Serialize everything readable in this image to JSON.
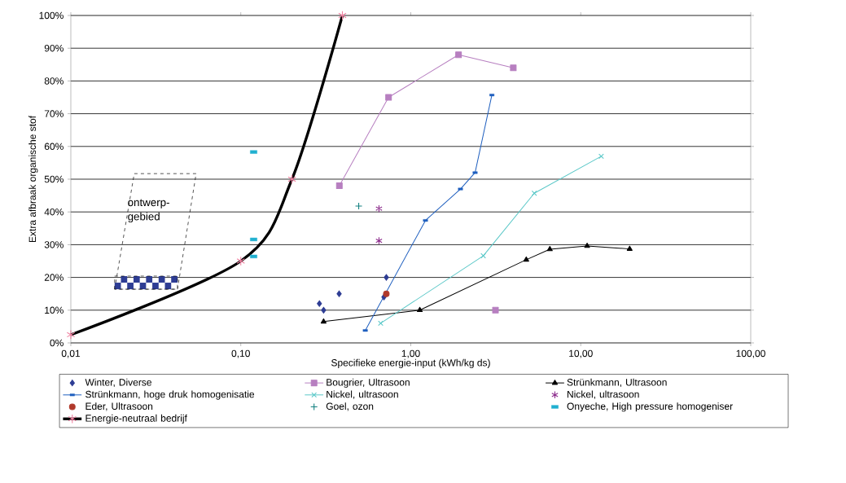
{
  "chart_data": {
    "type": "line",
    "xlabel": "Specifieke energie-input (kWh/kg ds)",
    "ylabel": "Extra afbraak organische stof",
    "log": "x",
    "xlim": [
      0.01,
      100
    ],
    "ylim": [
      0,
      100
    ],
    "xticks": [
      {
        "value": 0.01,
        "label": "0,01"
      },
      {
        "value": 0.1,
        "label": "0,10"
      },
      {
        "value": 1,
        "label": "1,00"
      },
      {
        "value": 10,
        "label": "10,00"
      },
      {
        "value": 100,
        "label": "100,00"
      }
    ],
    "yticks": [
      {
        "value": 0,
        "label": "0%"
      },
      {
        "value": 10,
        "label": "10%"
      },
      {
        "value": 20,
        "label": "20%"
      },
      {
        "value": 30,
        "label": "30%"
      },
      {
        "value": 40,
        "label": "40%"
      },
      {
        "value": 50,
        "label": "50%"
      },
      {
        "value": 60,
        "label": "60%"
      },
      {
        "value": 70,
        "label": "70%"
      },
      {
        "value": 80,
        "label": "80%"
      },
      {
        "value": 90,
        "label": "90%"
      },
      {
        "value": 100,
        "label": "100%"
      }
    ],
    "grid": "y",
    "legend": "bottom",
    "annotations": [
      "ontwerp-gebied"
    ],
    "series": [
      {
        "name": "Winter, Diverse",
        "type": "scatter",
        "marker": "diamond",
        "color": "#2e3d94",
        "x": [
          0.29,
          0.307,
          0.379,
          0.695,
          0.718
        ],
        "values": [
          12,
          10,
          15,
          14,
          20
        ]
      },
      {
        "name": "Bougrier, Ultrasoon",
        "marker": "square",
        "color": "#b77fc0",
        "x": [
          0.38,
          0.74,
          1.91,
          4.01,
          null,
          3.15
        ],
        "values": [
          48,
          75,
          88,
          84,
          null,
          10
        ]
      },
      {
        "name": "Strünkmann, Ultrasoon",
        "marker": "triangle",
        "color": "#000000",
        "x": [
          0.307,
          1.13,
          4.78,
          6.58,
          10.9,
          19.4
        ],
        "values": [
          6.5,
          10,
          25.4,
          28.6,
          29.6,
          28.7
        ]
      },
      {
        "name": "Strünkmann, hoge druk homogenisatie",
        "marker": "square",
        "color": "#1f5fbf",
        "x": [
          0.54,
          1.22,
          1.96,
          2.39,
          3.0
        ],
        "values": [
          3.8,
          37.4,
          47,
          52,
          75.7
        ]
      },
      {
        "name": "Nickel, ultrasoon",
        "marker": "cross",
        "color": "#5bc8c8",
        "x": [
          0.665,
          2.67,
          5.33,
          13.2
        ],
        "values": [
          6,
          26.6,
          45.7,
          57
        ]
      },
      {
        "name": "Nickel, ultrasoon",
        "type": "scatter",
        "marker": "cross",
        "color": "#8b2a8b",
        "x": [
          0.65,
          0.65
        ],
        "values": [
          41,
          31.2
        ]
      },
      {
        "name": "Eder, Ultrasoon",
        "type": "scatter",
        "marker": "circle",
        "color": "#b0392b",
        "x": [
          0.718
        ],
        "values": [
          15
        ]
      },
      {
        "name": "Goel, ozon",
        "type": "scatter",
        "marker": "cross",
        "color": "#138080",
        "x": [
          0.494
        ],
        "values": [
          41.8
        ]
      },
      {
        "name": "Onyeche, High pressure homogeniser",
        "type": "scatter",
        "marker": "square",
        "color": "#20b0d0",
        "x": [
          0.119,
          0.119,
          0.119
        ],
        "values": [
          58.3,
          31.6,
          26.4
        ]
      },
      {
        "name": "Energie-neutraal bedrijf",
        "marker": "cross",
        "color": "#000000",
        "x": [
          0.01,
          0.1,
          0.2,
          0.396
        ],
        "values": [
          2.5,
          25,
          50,
          100
        ]
      }
    ]
  }
}
